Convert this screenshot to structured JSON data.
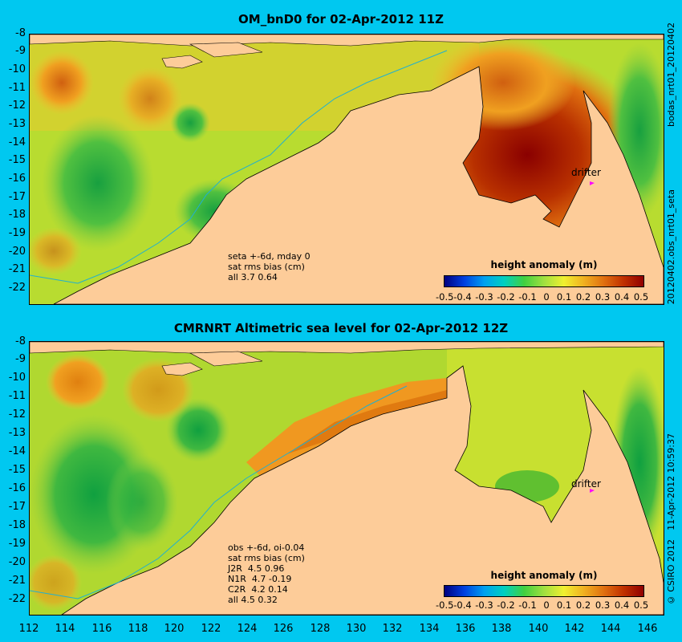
{
  "top_panel": {
    "title": "OM_bnD0 for 02-Apr-2012 11Z",
    "info_lines": [
      "seta +-6d, mday 0",
      "sat rms bias (cm)",
      "all 3.7 0.64"
    ],
    "colorbar_title": "height anomaly (m)",
    "side_label_top": "bodas_nrt01_20120402",
    "side_label_bottom": "20120402.obs_nrt01_seta",
    "drifter_label": "drifter"
  },
  "bottom_panel": {
    "title": "CMRNRT Altimetric sea level  for 02-Apr-2012 12Z",
    "info_lines": [
      "obs +-6d, oi-0.04",
      "sat rms bias (cm)",
      "J2R  4.5 0.96",
      "N1R  4.7 -0.19",
      "C2R  4.2 0.14",
      "all 4.5 0.32"
    ],
    "colorbar_title": "height anomaly (m)",
    "side_label_top": "11-Apr-2012 10:59:37",
    "side_label_bottom": "© CSIRO 2012",
    "drifter_label": "drifter"
  },
  "y_ticks": [
    "-8",
    "-9",
    "-10",
    "-11",
    "-12",
    "-13",
    "-14",
    "-15",
    "-16",
    "-17",
    "-18",
    "-19",
    "-20",
    "-21",
    "-22"
  ],
  "x_ticks": [
    "112",
    "114",
    "116",
    "118",
    "120",
    "122",
    "124",
    "126",
    "128",
    "130",
    "132",
    "134",
    "136",
    "138",
    "140",
    "142",
    "144",
    "146"
  ],
  "colorbar_ticks": [
    "-0.5",
    "-0.4",
    "-0.3",
    "-0.2",
    "-0.1",
    "0",
    "0.1",
    "0.2",
    "0.3",
    "0.4",
    "0.5"
  ],
  "colors": {
    "background": "#00c8f0",
    "land": "#fdcc99",
    "positive_max": "#a00000",
    "negative_max": "#000080",
    "drifter_marker": "#ff00ff"
  }
}
